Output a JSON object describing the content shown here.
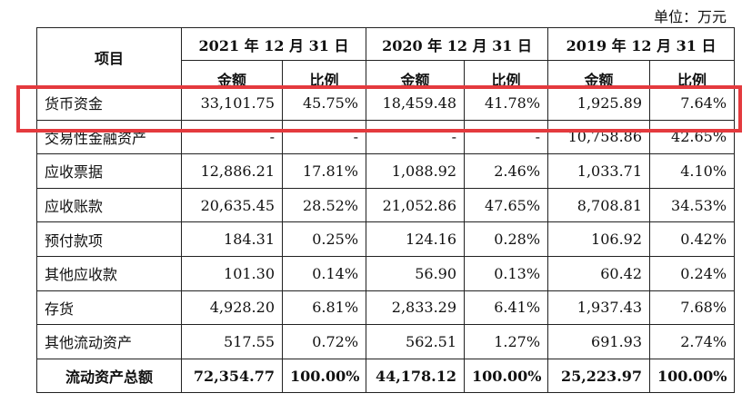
{
  "unit_label": "单位：万元",
  "header": {
    "item": "项目",
    "years": [
      "2021 年 12 月 31 日",
      "2020 年 12 月 31 日",
      "2019 年 12 月 31 日"
    ],
    "amount": "金额",
    "ratio": "比例"
  },
  "rows": [
    {
      "name": "货币资金",
      "values": [
        "33,101.75",
        "45.75%",
        "18,459.48",
        "41.78%",
        "1,925.89",
        "7.64%"
      ]
    },
    {
      "name": "交易性金融资产",
      "values": [
        "-",
        "-",
        "-",
        "-",
        "10,758.86",
        "42.65%"
      ]
    },
    {
      "name": "应收票据",
      "values": [
        "12,886.21",
        "17.81%",
        "1,088.92",
        "2.46%",
        "1,033.71",
        "4.10%"
      ]
    },
    {
      "name": "应收账款",
      "values": [
        "20,635.45",
        "28.52%",
        "21,052.86",
        "47.65%",
        "8,708.81",
        "34.53%"
      ]
    },
    {
      "name": "预付款项",
      "values": [
        "184.31",
        "0.25%",
        "124.16",
        "0.28%",
        "106.92",
        "0.42%"
      ]
    },
    {
      "name": "其他应收款",
      "values": [
        "101.30",
        "0.14%",
        "56.90",
        "0.13%",
        "60.42",
        "0.24%"
      ]
    },
    {
      "name": "存货",
      "values": [
        "4,928.20",
        "6.81%",
        "2,833.29",
        "6.41%",
        "1,937.43",
        "7.68%"
      ]
    },
    {
      "name": "其他流动资产",
      "values": [
        "517.55",
        "0.72%",
        "562.51",
        "1.27%",
        "691.93",
        "2.74%"
      ]
    }
  ],
  "total": {
    "name": "流动资产总额",
    "values": [
      "72,354.77",
      "100.00%",
      "44,178.12",
      "100.00%",
      "25,223.97",
      "100.00%"
    ]
  },
  "highlight_color": "#e43a3e"
}
